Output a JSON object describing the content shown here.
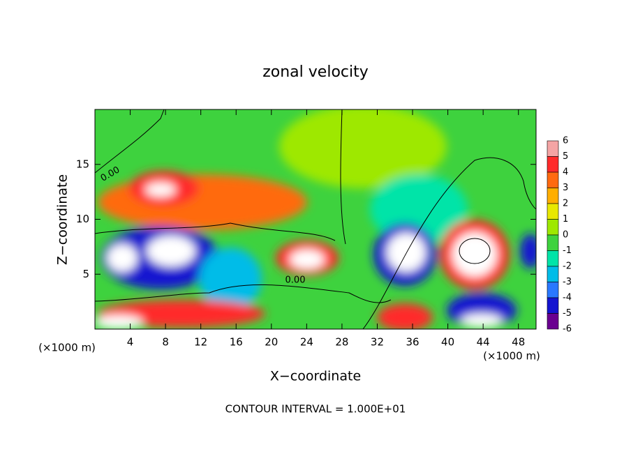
{
  "chart_data": {
    "type": "contour",
    "title": "zonal velocity",
    "x_label": "X−coordinate",
    "y_label": "Z−coordinate",
    "x_unit_left": "(×1000 m)",
    "x_unit_right": "(×1000 m)",
    "footnote": "CONTOUR INTERVAL = 1.000E+01",
    "contour_labels": [
      "0.00",
      "0.00"
    ],
    "xlim": [
      0,
      50
    ],
    "xticks": [
      4,
      8,
      12,
      16,
      20,
      24,
      28,
      32,
      36,
      40,
      44,
      48
    ],
    "ylim": [
      0,
      20
    ],
    "yticks": [
      5,
      10,
      15
    ],
    "colorbar": {
      "levels": [
        6,
        5,
        4,
        3,
        2,
        1,
        0,
        -1,
        -2,
        -3,
        -4,
        -5,
        -6
      ],
      "colors": [
        "#f4a4a4",
        "#ff2a2a",
        "#ff6a10",
        "#ffae00",
        "#e8e800",
        "#9ee800",
        "#3ed23e",
        "#00e4a8",
        "#00bce8",
        "#2a78ff",
        "#1414d0",
        "#6a0090"
      ]
    }
  }
}
